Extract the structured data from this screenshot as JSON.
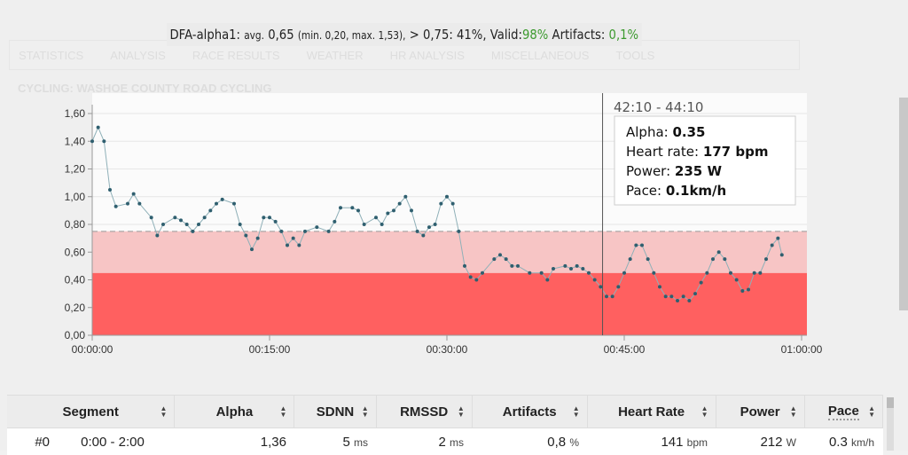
{
  "summary": {
    "label": "DFA-alpha1:",
    "avg_label": "avg.",
    "avg": "0,65",
    "range": "(min. 0,20, max. 1,53),",
    "threshold": "> 0,75: 41%,",
    "valid_label": "Valid:",
    "valid": "98%",
    "artifacts_label": "Artifacts:",
    "artifacts": "0,1%"
  },
  "background": {
    "nav": [
      "STATISTICS",
      "ANALYSIS",
      "RACE RESULTS",
      "WEATHER",
      "HR ANALYSIS",
      "MISCELLANEOUS",
      "TOOLS"
    ],
    "title": "CYCLING: WASHOE COUNTY ROAD CYCLING"
  },
  "colors": {
    "accent": "#3c9a2e",
    "point": "#2f5f6f",
    "zone_low": "#ff6060",
    "zone_mid": "#f7c5c5"
  },
  "chart_data": {
    "type": "line",
    "xlabel": "",
    "ylabel": "",
    "xlim": [
      "00:00:00",
      "01:00:00"
    ],
    "ylim": [
      0,
      1.6
    ],
    "yticks": [
      "0,00",
      "0,20",
      "0,40",
      "0,60",
      "0,80",
      "1,00",
      "1,20",
      "1,40",
      "1,60"
    ],
    "xticks": [
      "00:00:00",
      "00:15:00",
      "00:30:00",
      "00:45:00",
      "01:00:00"
    ],
    "grid": true,
    "bands": [
      {
        "from": 0,
        "to": 0.45,
        "color": "#ff6060"
      },
      {
        "from": 0.45,
        "to": 0.75,
        "color": "#f7c5c5"
      }
    ],
    "threshold_line": 0.75,
    "tooltip": {
      "time_range": "42:10 - 44:10",
      "rows": [
        {
          "label": "Alpha:",
          "value": "0.35"
        },
        {
          "label": "Heart rate:",
          "value": "177 bpm"
        },
        {
          "label": "Power:",
          "value": "235 W"
        },
        {
          "label": "Pace:",
          "value": "0.1km/h"
        }
      ],
      "cursor_x": "00:43:10"
    },
    "points": [
      [
        "00:00:00",
        1.4
      ],
      [
        "00:00:30",
        1.5
      ],
      [
        "00:01:00",
        1.4
      ],
      [
        "00:01:30",
        1.05
      ],
      [
        "00:02:00",
        0.93
      ],
      [
        "00:03:00",
        0.95
      ],
      [
        "00:03:30",
        1.02
      ],
      [
        "00:04:00",
        0.95
      ],
      [
        "00:05:00",
        0.85
      ],
      [
        "00:05:30",
        0.72
      ],
      [
        "00:06:00",
        0.8
      ],
      [
        "00:07:00",
        0.85
      ],
      [
        "00:07:30",
        0.83
      ],
      [
        "00:08:00",
        0.8
      ],
      [
        "00:08:30",
        0.75
      ],
      [
        "00:09:00",
        0.8
      ],
      [
        "00:09:30",
        0.85
      ],
      [
        "00:10:00",
        0.9
      ],
      [
        "00:10:30",
        0.95
      ],
      [
        "00:11:00",
        0.98
      ],
      [
        "00:12:00",
        0.95
      ],
      [
        "00:12:30",
        0.8
      ],
      [
        "00:13:00",
        0.72
      ],
      [
        "00:13:30",
        0.62
      ],
      [
        "00:14:00",
        0.7
      ],
      [
        "00:14:30",
        0.85
      ],
      [
        "00:15:00",
        0.85
      ],
      [
        "00:15:30",
        0.82
      ],
      [
        "00:16:00",
        0.75
      ],
      [
        "00:16:30",
        0.65
      ],
      [
        "00:17:00",
        0.7
      ],
      [
        "00:17:30",
        0.65
      ],
      [
        "00:18:00",
        0.75
      ],
      [
        "00:19:00",
        0.78
      ],
      [
        "00:20:00",
        0.75
      ],
      [
        "00:20:30",
        0.82
      ],
      [
        "00:21:00",
        0.92
      ],
      [
        "00:22:00",
        0.92
      ],
      [
        "00:22:30",
        0.9
      ],
      [
        "00:23:00",
        0.8
      ],
      [
        "00:24:00",
        0.85
      ],
      [
        "00:24:30",
        0.8
      ],
      [
        "00:25:00",
        0.88
      ],
      [
        "00:25:30",
        0.9
      ],
      [
        "00:26:00",
        0.95
      ],
      [
        "00:26:30",
        1.0
      ],
      [
        "00:27:00",
        0.9
      ],
      [
        "00:27:30",
        0.75
      ],
      [
        "00:28:00",
        0.72
      ],
      [
        "00:28:30",
        0.78
      ],
      [
        "00:29:00",
        0.8
      ],
      [
        "00:29:30",
        0.95
      ],
      [
        "00:30:00",
        1.0
      ],
      [
        "00:30:30",
        0.95
      ],
      [
        "00:31:00",
        0.75
      ],
      [
        "00:31:30",
        0.5
      ],
      [
        "00:32:00",
        0.42
      ],
      [
        "00:32:30",
        0.4
      ],
      [
        "00:33:00",
        0.45
      ],
      [
        "00:34:00",
        0.55
      ],
      [
        "00:34:30",
        0.58
      ],
      [
        "00:35:00",
        0.55
      ],
      [
        "00:35:30",
        0.5
      ],
      [
        "00:36:00",
        0.5
      ],
      [
        "00:37:00",
        0.45
      ],
      [
        "00:38:00",
        0.45
      ],
      [
        "00:38:30",
        0.4
      ],
      [
        "00:39:00",
        0.48
      ],
      [
        "00:40:00",
        0.5
      ],
      [
        "00:40:30",
        0.48
      ],
      [
        "00:41:00",
        0.5
      ],
      [
        "00:41:30",
        0.48
      ],
      [
        "00:42:00",
        0.45
      ],
      [
        "00:42:30",
        0.4
      ],
      [
        "00:43:00",
        0.35
      ],
      [
        "00:43:30",
        0.28
      ],
      [
        "00:44:00",
        0.28
      ],
      [
        "00:44:30",
        0.35
      ],
      [
        "00:45:00",
        0.45
      ],
      [
        "00:45:30",
        0.55
      ],
      [
        "00:46:00",
        0.65
      ],
      [
        "00:46:30",
        0.65
      ],
      [
        "00:47:00",
        0.55
      ],
      [
        "00:47:30",
        0.45
      ],
      [
        "00:48:00",
        0.35
      ],
      [
        "00:48:30",
        0.28
      ],
      [
        "00:49:00",
        0.28
      ],
      [
        "00:49:30",
        0.25
      ],
      [
        "00:50:00",
        0.28
      ],
      [
        "00:50:30",
        0.25
      ],
      [
        "00:51:00",
        0.3
      ],
      [
        "00:51:30",
        0.38
      ],
      [
        "00:52:00",
        0.45
      ],
      [
        "00:52:30",
        0.55
      ],
      [
        "00:53:00",
        0.6
      ],
      [
        "00:53:30",
        0.55
      ],
      [
        "00:54:00",
        0.45
      ],
      [
        "00:54:30",
        0.4
      ],
      [
        "00:55:00",
        0.32
      ],
      [
        "00:55:30",
        0.33
      ],
      [
        "00:56:00",
        0.45
      ],
      [
        "00:56:30",
        0.45
      ],
      [
        "00:57:00",
        0.55
      ],
      [
        "00:57:30",
        0.65
      ],
      [
        "00:58:00",
        0.7
      ],
      [
        "00:58:20",
        0.58
      ]
    ]
  },
  "table": {
    "headers": [
      "Segment",
      "Alpha",
      "SDNN",
      "RMSSD",
      "Artifacts",
      "Heart Rate",
      "Power",
      "Pace"
    ],
    "rows": [
      {
        "index": "#0",
        "range": "0:00 - 2:00",
        "alpha": "1,36",
        "sdnn": "5",
        "sdnn_unit": "ms",
        "rmssd": "2",
        "rmssd_unit": "ms",
        "artifacts": "0,8",
        "artifacts_unit": "%",
        "hr": "141",
        "hr_unit": "bpm",
        "power": "212",
        "power_unit": "W",
        "pace": "0.3",
        "pace_unit": "km/h"
      }
    ]
  }
}
